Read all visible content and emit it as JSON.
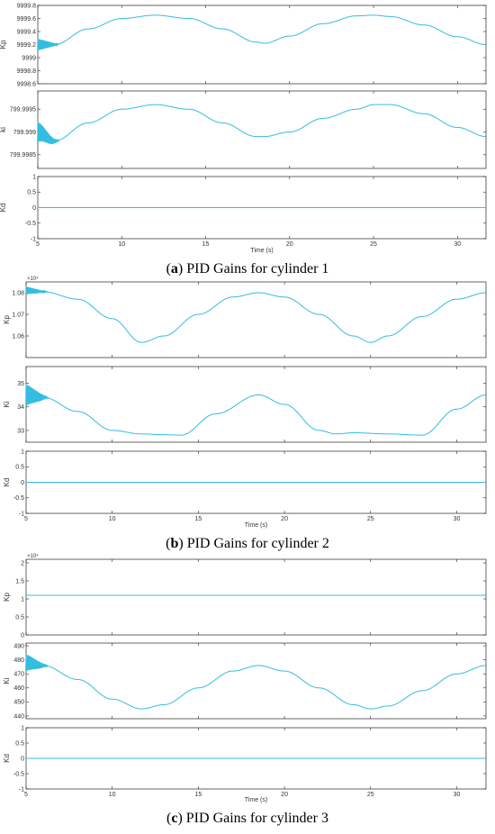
{
  "figure": {
    "line_color": "#33bde0",
    "axis_color": "#262626"
  },
  "captions": [
    {
      "label": "a",
      "text": " PID Gains for cylinder 1"
    },
    {
      "label": "b",
      "text": " PID Gains for cylinder 2"
    },
    {
      "label": "c",
      "text": " PID Gains for cylinder 3"
    }
  ],
  "chart_data": [
    {
      "type": "line",
      "panel": "a",
      "xlabel": "Time (s)",
      "xlim": [
        5,
        31.7
      ],
      "xticks": [
        5,
        10,
        15,
        20,
        25,
        30
      ],
      "subplots": [
        {
          "ylabel": "Kp",
          "ylim": [
            9998.6,
            9999.8
          ],
          "yticks": [
            "9998.6",
            "9998.8",
            "9999",
            "9999.2",
            "9999.4",
            "9999.6",
            "9999.8"
          ],
          "ytick_values": [
            9998.6,
            9998.8,
            9999,
            9999.2,
            9999.4,
            9999.6,
            9999.8
          ],
          "exponent": "",
          "series": {
            "x": [
              5,
              6,
              8,
              10,
              12,
              14,
              16,
              18,
              18.5,
              20,
              22,
              24,
              25,
              26,
              28,
              30,
              31.7
            ],
            "y": [
              9999.2,
              9999.2,
              9999.44,
              9999.6,
              9999.65,
              9999.6,
              9999.44,
              9999.24,
              9999.22,
              9999.33,
              9999.52,
              9999.64,
              9999.65,
              9999.63,
              9999.5,
              9999.32,
              9999.2
            ],
            "osc_until": 6.3,
            "osc_amp": 0.09
          }
        },
        {
          "ylabel": "ki",
          "ylim": [
            799.9982,
            799.9999
          ],
          "yticks": [
            "799.9985",
            "799.999",
            "799.9995"
          ],
          "ytick_values": [
            799.9985,
            799.999,
            799.9995
          ],
          "exponent": "",
          "series": {
            "x": [
              5,
              6,
              8,
              10,
              12,
              14,
              16,
              18,
              18.5,
              20,
              22,
              24,
              25,
              26,
              28,
              30,
              31.7
            ],
            "y": [
              799.999,
              799.9988,
              799.9992,
              799.9995,
              799.9996,
              799.9995,
              799.9992,
              799.9989,
              799.9989,
              799.999,
              799.9993,
              799.9995,
              799.9996,
              799.9996,
              799.9994,
              799.9991,
              799.9989
            ],
            "osc_until": 6.3,
            "osc_amp": 0.00022
          }
        },
        {
          "ylabel": "Kd",
          "ylim": [
            -1,
            1
          ],
          "yticks": [
            "-1",
            "-0.5",
            "0",
            "0.5",
            "1"
          ],
          "ytick_values": [
            -1,
            -0.5,
            0,
            0.5,
            1
          ],
          "exponent": "",
          "series": {
            "x": [
              5,
              31.7
            ],
            "y": [
              0,
              0
            ],
            "osc_until": 0,
            "osc_amp": 0
          }
        }
      ]
    },
    {
      "type": "line",
      "panel": "b",
      "xlabel": "Time (s)",
      "xlim": [
        5,
        31.7
      ],
      "xticks": [
        5,
        10,
        15,
        20,
        25,
        30
      ],
      "subplots": [
        {
          "ylabel": "Kp",
          "ylim": [
            10500,
            10850
          ],
          "yticks": [
            "1.06",
            "1.07",
            "1.08"
          ],
          "ytick_values": [
            10600,
            10700,
            10800
          ],
          "exponent": "×10⁴",
          "series": {
            "x": [
              5,
              6,
              8,
              10,
              11.7,
              13,
              15,
              17,
              18.5,
              20,
              22,
              24,
              25,
              26,
              28,
              30,
              31.7
            ],
            "y": [
              10810,
              10805,
              10770,
              10680,
              10570,
              10600,
              10700,
              10780,
              10800,
              10780,
              10700,
              10600,
              10570,
              10600,
              10690,
              10770,
              10800
            ],
            "osc_until": 6.3,
            "osc_amp": 18
          }
        },
        {
          "ylabel": "Ki",
          "ylim": [
            32.5,
            35.7
          ],
          "yticks": [
            "33",
            "34",
            "35"
          ],
          "ytick_values": [
            33,
            34,
            35
          ],
          "exponent": "",
          "series": {
            "x": [
              5,
              6,
              8,
              10,
              11.7,
              13,
              14,
              16,
              18.5,
              20,
              22,
              23,
              24,
              26,
              28,
              30,
              31.7
            ],
            "y": [
              34.5,
              34.4,
              33.8,
              33.0,
              32.85,
              32.82,
              32.8,
              33.7,
              34.5,
              34.1,
              33.0,
              32.85,
              32.9,
              32.85,
              32.8,
              33.9,
              34.5
            ],
            "osc_until": 6.3,
            "osc_amp": 0.45
          }
        },
        {
          "ylabel": "Kd",
          "ylim": [
            -1,
            1
          ],
          "yticks": [
            "-1",
            "-0.5",
            "0",
            "0.5",
            "1"
          ],
          "ytick_values": [
            -1,
            -0.5,
            0,
            0.5,
            1
          ],
          "exponent": "",
          "series": {
            "x": [
              5,
              31.7
            ],
            "y": [
              0,
              0
            ],
            "osc_until": 0,
            "osc_amp": 0
          }
        }
      ]
    },
    {
      "type": "line",
      "panel": "c",
      "xlabel": "Time (s)",
      "xlim": [
        5,
        31.7
      ],
      "xticks": [
        5,
        10,
        15,
        20,
        25,
        30
      ],
      "subplots": [
        {
          "ylabel": "Kp",
          "ylim": [
            0,
            21000
          ],
          "yticks": [
            "0",
            "0.5",
            "1",
            "1.5",
            "2"
          ],
          "ytick_values": [
            0,
            5000,
            10000,
            15000,
            20000
          ],
          "exponent": "×10⁴",
          "series": {
            "x": [
              5,
              31.7
            ],
            "y": [
              11000,
              11000
            ],
            "osc_until": 0,
            "osc_amp": 0
          }
        },
        {
          "ylabel": "Ki",
          "ylim": [
            438,
            492
          ],
          "yticks": [
            "440",
            "450",
            "460",
            "470",
            "480",
            "490"
          ],
          "ytick_values": [
            440,
            450,
            460,
            470,
            480,
            490
          ],
          "exponent": "",
          "series": {
            "x": [
              5,
              6,
              8,
              10,
              11.7,
              13,
              15,
              17,
              18.5,
              20,
              22,
              24,
              25,
              26,
              28,
              30,
              31.7
            ],
            "y": [
              478,
              476,
              466,
              452,
              445,
              448,
              460,
              472,
              476,
              472,
              460,
              448,
              445,
              447,
              458,
              470,
              476
            ],
            "osc_until": 6.3,
            "osc_amp": 6
          }
        },
        {
          "ylabel": "Kd",
          "ylim": [
            -1,
            1
          ],
          "yticks": [
            "-1",
            "-0.5",
            "0",
            "0.5",
            "1"
          ],
          "ytick_values": [
            -1,
            -0.5,
            0,
            0.5,
            1
          ],
          "exponent": "",
          "series": {
            "x": [
              5,
              31.7
            ],
            "y": [
              0,
              0
            ],
            "osc_until": 0,
            "osc_amp": 0
          }
        }
      ]
    }
  ]
}
